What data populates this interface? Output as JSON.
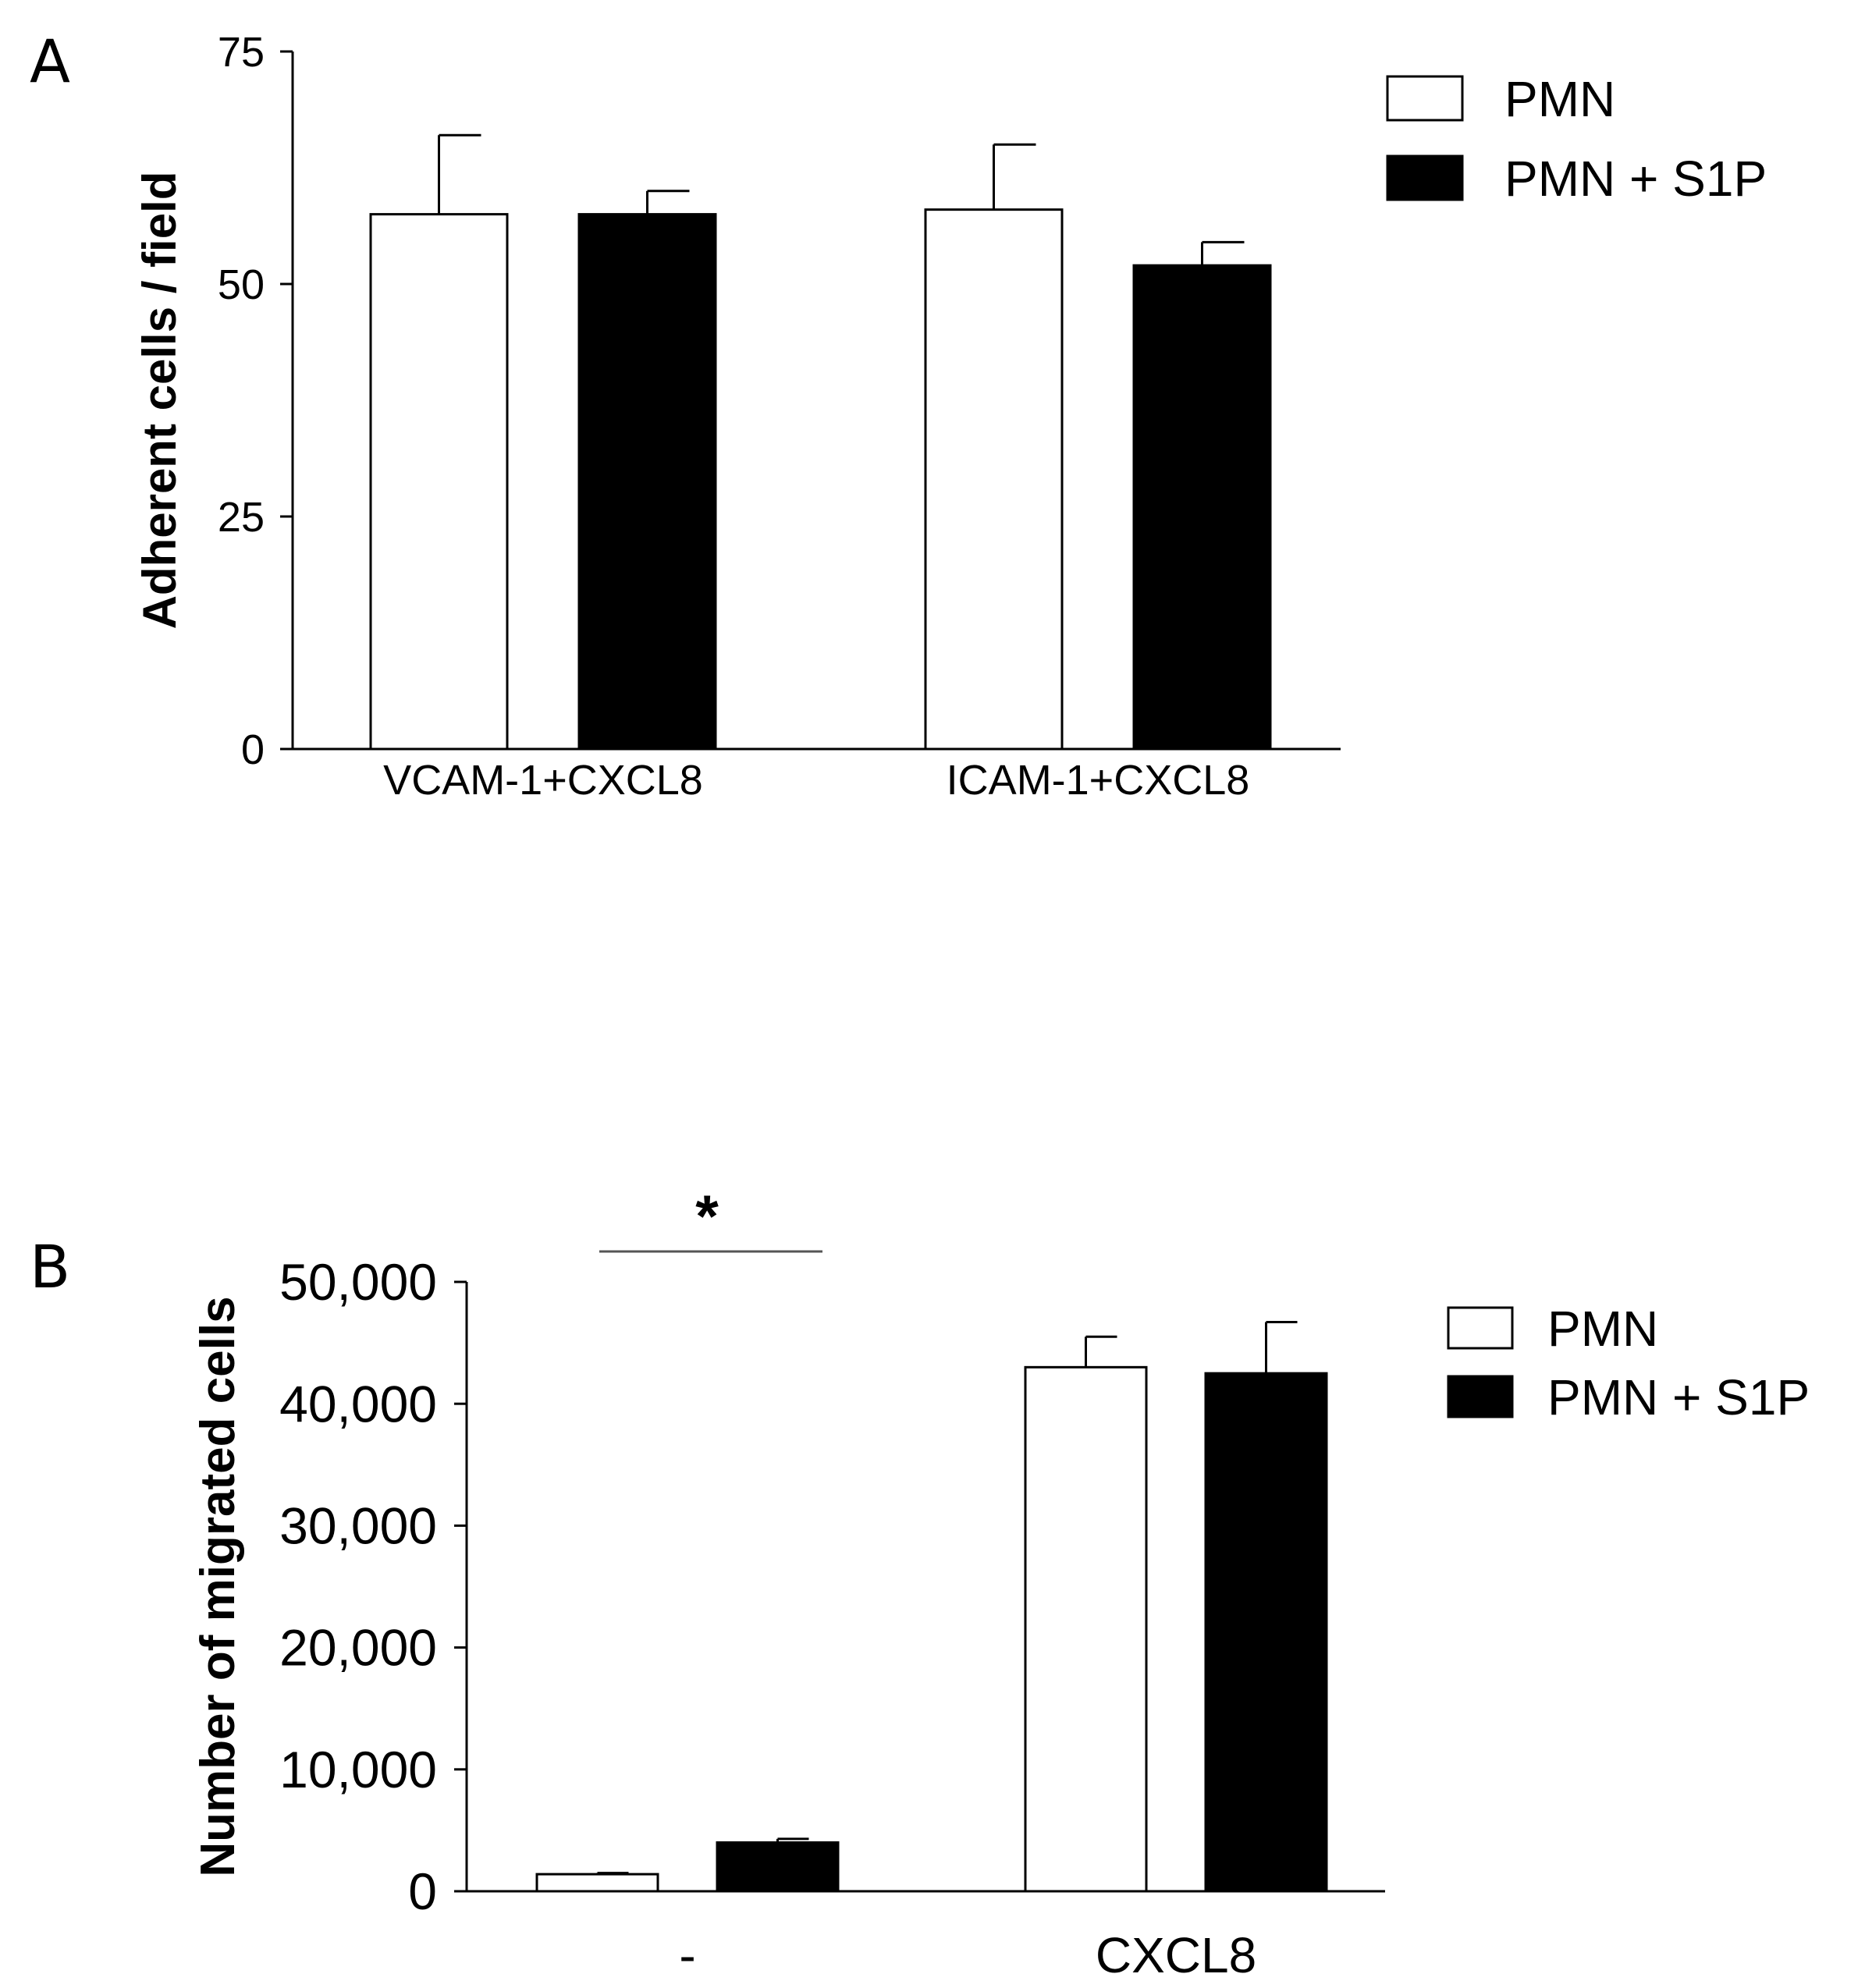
{
  "figure": {
    "panel_a_letter": "A",
    "panel_b_letter": "B"
  },
  "colors": {
    "pmn_fill": "#ffffff",
    "pmn_s1p_fill": "#000000",
    "stroke": "#000000",
    "significance_line": "#555555"
  },
  "chart_data": [
    {
      "panel": "A",
      "type": "bar",
      "title": "",
      "categories": [
        "VCAM-1+CXCL8",
        "ICAM-1+CXCL8"
      ],
      "series": [
        {
          "name": "PMN",
          "values": [
            57.5,
            58.0
          ],
          "errors": [
            8.5,
            7.0
          ]
        },
        {
          "name": "PMN + S1P",
          "values": [
            57.5,
            52.0
          ],
          "errors": [
            2.5,
            2.5
          ]
        }
      ],
      "xlabel": "",
      "ylabel": "Adherent cells / field",
      "ylim": [
        0,
        75
      ],
      "yticks": [
        0,
        25,
        50,
        75
      ],
      "ytick_labels": [
        "0",
        "25",
        "50",
        "75"
      ],
      "grid": false,
      "legend": "top-right"
    },
    {
      "panel": "B",
      "type": "bar",
      "title": "",
      "categories": [
        "-",
        "CXCL8"
      ],
      "series": [
        {
          "name": "PMN",
          "values": [
            1400,
            43000
          ],
          "errors": [
            100,
            2500
          ]
        },
        {
          "name": "PMN + S1P",
          "values": [
            4000,
            42500
          ],
          "errors": [
            300,
            4200
          ]
        }
      ],
      "xlabel": "",
      "ylabel": "Number of migrated cells",
      "ylim": [
        0,
        50000
      ],
      "yticks": [
        0,
        10000,
        20000,
        30000,
        40000,
        50000
      ],
      "ytick_labels": [
        "0",
        "10,000",
        "20,000",
        "30,000",
        "40,000",
        "50,000"
      ],
      "grid": false,
      "legend": "right",
      "annotations": [
        {
          "text": "*",
          "category": "-",
          "note": "significance between PMN and PMN + S1P"
        }
      ]
    }
  ]
}
